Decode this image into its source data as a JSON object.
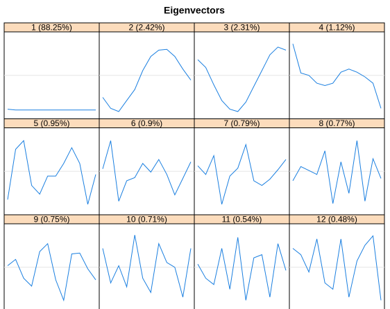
{
  "chart_data": {
    "type": "line",
    "title": "Eigenvectors",
    "color": "#1a7fe0",
    "strip_color": "#fcdcbc",
    "ylim": [
      -0.5,
      0.5
    ],
    "hline": 0,
    "panels": [
      {
        "name": "1 (88.25%)",
        "values": [
          -0.43,
          -0.44,
          -0.44,
          -0.44,
          -0.44,
          -0.44,
          -0.44,
          -0.44,
          -0.44,
          -0.44,
          -0.44,
          -0.44
        ]
      },
      {
        "name": "2 (2.42%)",
        "values": [
          -0.28,
          -0.42,
          -0.46,
          -0.32,
          -0.18,
          0.06,
          0.24,
          0.32,
          0.33,
          0.24,
          0.08,
          -0.06
        ]
      },
      {
        "name": "3 (2.31%)",
        "values": [
          0.2,
          0.1,
          -0.12,
          -0.32,
          -0.43,
          -0.46,
          -0.34,
          -0.14,
          0.06,
          0.26,
          0.36,
          0.32
        ]
      },
      {
        "name": "4 (1.12%)",
        "values": [
          0.4,
          0.03,
          0,
          -0.1,
          -0.13,
          -0.1,
          0.04,
          0.08,
          0.04,
          -0.02,
          -0.1,
          -0.42
        ]
      },
      {
        "name": "5 (0.95%)",
        "values": [
          -0.36,
          0.28,
          0.39,
          -0.18,
          -0.29,
          -0.06,
          -0.06,
          0.1,
          0.3,
          0.1,
          -0.42,
          -0.04
        ]
      },
      {
        "name": "6 (0.9%)",
        "values": [
          0.03,
          0.39,
          -0.38,
          -0.12,
          -0.08,
          0.1,
          -0.01,
          0.15,
          -0.04,
          -0.3,
          -0.09,
          0.12
        ]
      },
      {
        "name": "7 (0.79%)",
        "values": [
          0.07,
          -0.04,
          0.2,
          -0.42,
          -0.06,
          0.04,
          0.34,
          -0.12,
          -0.18,
          -0.1,
          0.02,
          0.15
        ]
      },
      {
        "name": "8 (0.77%)",
        "values": [
          -0.12,
          0.06,
          0.01,
          -0.04,
          0.26,
          -0.41,
          0.12,
          -0.28,
          0.39,
          -0.38,
          0.16,
          -0.09
        ]
      },
      {
        "name": "9 (0.75%)",
        "values": [
          0.02,
          0.1,
          -0.14,
          -0.24,
          0.2,
          0.3,
          -0.16,
          -0.42,
          0.17,
          0.18,
          -0.02,
          -0.16
        ]
      },
      {
        "name": "10 (0.71%)",
        "values": [
          0.24,
          -0.2,
          0.02,
          -0.25,
          0.41,
          -0.14,
          -0.32,
          0.3,
          0.06,
          0,
          -0.38,
          0.24
        ]
      },
      {
        "name": "11 (0.54%)",
        "values": [
          0.04,
          -0.14,
          -0.22,
          0.24,
          -0.28,
          0.38,
          -0.42,
          0.12,
          0.16,
          -0.38,
          0.3,
          -0.04
        ]
      },
      {
        "name": "12 (0.48%)",
        "values": [
          0.24,
          0.16,
          -0.06,
          0.36,
          -0.2,
          -0.28,
          0.36,
          -0.38,
          0.08,
          0.28,
          0.4,
          -0.42
        ]
      }
    ]
  }
}
